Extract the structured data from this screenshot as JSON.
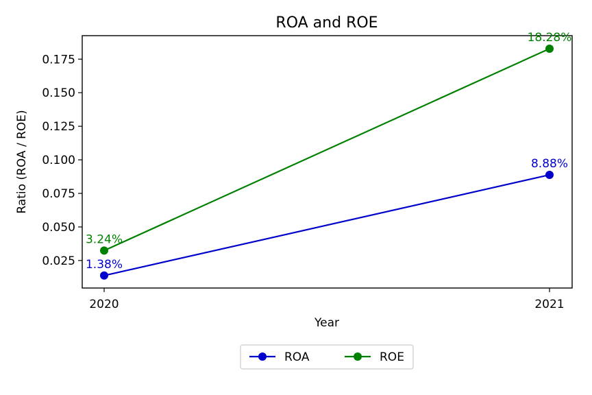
{
  "chart_data": {
    "type": "line",
    "title": "ROA and ROE",
    "xlabel": "Year",
    "ylabel": "Ratio (ROA / ROE)",
    "x": [
      "2020",
      "2021"
    ],
    "ylim": [
      0.0045,
      0.1925
    ],
    "yticks": [
      0.025,
      0.05,
      0.075,
      0.1,
      0.125,
      0.15,
      0.175
    ],
    "ytick_labels": [
      "0.025",
      "0.050",
      "0.075",
      "0.100",
      "0.125",
      "0.150",
      "0.175"
    ],
    "grid": false,
    "legend_position": "bottom-center",
    "series": [
      {
        "name": "ROA",
        "color": "#0000cc",
        "values": [
          0.0138,
          0.0888
        ],
        "labels": [
          "1.38%",
          "8.88%"
        ]
      },
      {
        "name": "ROE",
        "color": "#008000",
        "values": [
          0.0324,
          0.1828
        ],
        "labels": [
          "3.24%",
          "18.28%"
        ]
      }
    ]
  }
}
